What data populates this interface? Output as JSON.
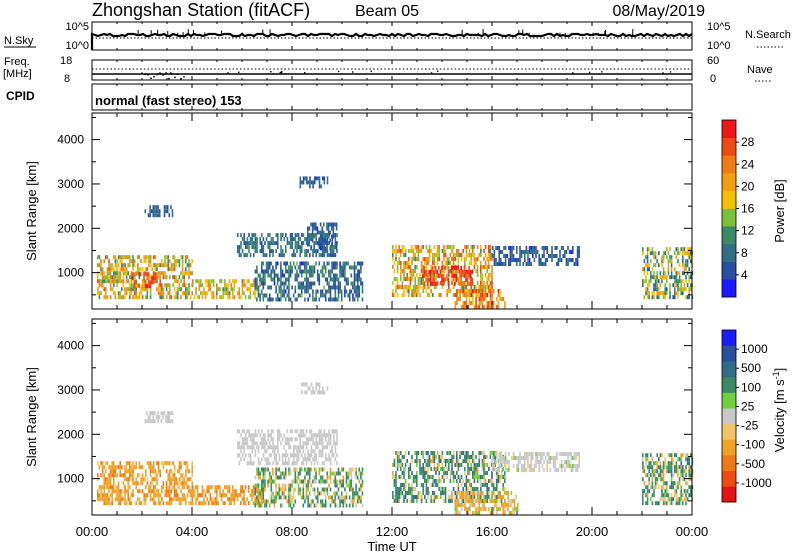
{
  "header": {
    "station": "Zhongshan Station (fitACF)",
    "beam": "Beam 05",
    "date": "08/May/2019"
  },
  "top_panels": {
    "nsky_label": "N.Sky",
    "nsky_ticks": [
      "10^5",
      "10^0"
    ],
    "nsearch_label": "N.Search",
    "nsearch_ticks": [
      "10^5",
      "10^0"
    ],
    "freq_label": "Freq.",
    "freq_unit": "[MHz]",
    "freq_ticks": [
      "18",
      "8"
    ],
    "nave_label": "Nave",
    "nave_ticks": [
      "60",
      "0"
    ],
    "cpid_label": "CPID",
    "cpid_value": "normal (fast stereo) 153"
  },
  "colors": {
    "power_scale": [
      "#1b1bff",
      "#2a4fa0",
      "#2f6e84",
      "#3a8a63",
      "#7cbf3a",
      "#f2c200",
      "#f0a010",
      "#ef7d12",
      "#ee4b14",
      "#ee1818"
    ],
    "velocity_scale": [
      "#e41414",
      "#f04a12",
      "#f07a12",
      "#f0a226",
      "#f2c46a",
      "#c8c8c8",
      "#6fcf3a",
      "#3a8a63",
      "#2f6e84",
      "#2a4fa0",
      "#1b1bff"
    ]
  },
  "chart_data": [
    {
      "type": "heatmap",
      "name": "power",
      "xlabel": "",
      "ylabel": "Slant Range [km]",
      "xlim": [
        0,
        24
      ],
      "ylim": [
        180,
        4600
      ],
      "yticks": [
        "4000",
        "3000",
        "2000",
        "1000"
      ],
      "colorbar_label": "Power [dB]",
      "colorbar_ticks": [
        "28",
        "24",
        "20",
        "16",
        "12",
        "8",
        "4"
      ],
      "clim": [
        0,
        32
      ],
      "regions": [
        {
          "t0": 0.2,
          "t1": 4.0,
          "r0": 400,
          "r1": 1350,
          "v": 18,
          "spread": 8
        },
        {
          "t0": 1.6,
          "t1": 2.6,
          "r0": 650,
          "r1": 1000,
          "v": 28,
          "spread": 3
        },
        {
          "t0": 4.0,
          "t1": 6.8,
          "r0": 400,
          "r1": 850,
          "v": 18,
          "spread": 6
        },
        {
          "t0": 5.8,
          "t1": 9.8,
          "r0": 1350,
          "r1": 1850,
          "v": 8,
          "spread": 3
        },
        {
          "t0": 8.6,
          "t1": 9.8,
          "r0": 1500,
          "r1": 2100,
          "v": 6,
          "spread": 3
        },
        {
          "t0": 6.5,
          "t1": 10.8,
          "r0": 350,
          "r1": 1250,
          "v": 8,
          "spread": 5
        },
        {
          "t0": 12.0,
          "t1": 16.0,
          "r0": 450,
          "r1": 1550,
          "v": 20,
          "spread": 8
        },
        {
          "t0": 13.2,
          "t1": 15.2,
          "r0": 700,
          "r1": 1150,
          "v": 28,
          "spread": 4
        },
        {
          "t0": 14.5,
          "t1": 16.5,
          "r0": 180,
          "r1": 600,
          "v": 24,
          "spread": 6
        },
        {
          "t0": 16.0,
          "t1": 19.5,
          "r0": 1150,
          "r1": 1600,
          "v": 6,
          "spread": 3
        },
        {
          "t0": 22.0,
          "t1": 24.0,
          "r0": 400,
          "r1": 1500,
          "v": 14,
          "spread": 8
        },
        {
          "t0": 2.1,
          "t1": 3.2,
          "r0": 2250,
          "r1": 2500,
          "v": 6,
          "spread": 2
        },
        {
          "t0": 8.3,
          "t1": 9.4,
          "r0": 2900,
          "r1": 3150,
          "v": 6,
          "spread": 2
        }
      ]
    },
    {
      "type": "heatmap",
      "name": "velocity",
      "xlabel": "Time UT",
      "ylabel": "Slant Range [km]",
      "xlim": [
        0,
        24
      ],
      "ylim": [
        180,
        4600
      ],
      "xticks": [
        "00:00",
        "04:00",
        "08:00",
        "12:00",
        "16:00",
        "20:00",
        "00:00"
      ],
      "yticks": [
        "4000",
        "3000",
        "2000",
        "1000"
      ],
      "colorbar_label": "Velocity [m s^-1]",
      "colorbar_ticks": [
        "1000",
        "500",
        "100",
        "25",
        "-25",
        "-100",
        "-500",
        "-1000"
      ],
      "clim": [
        -1000,
        1000
      ],
      "regions": [
        {
          "t0": 0.2,
          "t1": 4.0,
          "r0": 400,
          "r1": 1350,
          "v": -350,
          "spread": 300
        },
        {
          "t0": 4.0,
          "t1": 6.8,
          "r0": 400,
          "r1": 850,
          "v": -450,
          "spread": 200
        },
        {
          "t0": 5.8,
          "t1": 9.8,
          "r0": 1300,
          "r1": 2100,
          "v": 0,
          "spread": 20
        },
        {
          "t0": 6.5,
          "t1": 10.8,
          "r0": 350,
          "r1": 1250,
          "v": 100,
          "spread": 300
        },
        {
          "t0": 12.0,
          "t1": 16.5,
          "r0": 450,
          "r1": 1550,
          "v": 250,
          "spread": 400
        },
        {
          "t0": 14.5,
          "t1": 17.0,
          "r0": 180,
          "r1": 700,
          "v": -150,
          "spread": 250
        },
        {
          "t0": 16.0,
          "t1": 19.5,
          "r0": 1150,
          "r1": 1600,
          "v": 0,
          "spread": 30
        },
        {
          "t0": 22.0,
          "t1": 24.0,
          "r0": 400,
          "r1": 1500,
          "v": 150,
          "spread": 400
        },
        {
          "t0": 2.1,
          "t1": 3.2,
          "r0": 2250,
          "r1": 2500,
          "v": 0,
          "spread": 20
        },
        {
          "t0": 8.3,
          "t1": 9.4,
          "r0": 2900,
          "r1": 3150,
          "v": 0,
          "spread": 20
        }
      ]
    }
  ]
}
